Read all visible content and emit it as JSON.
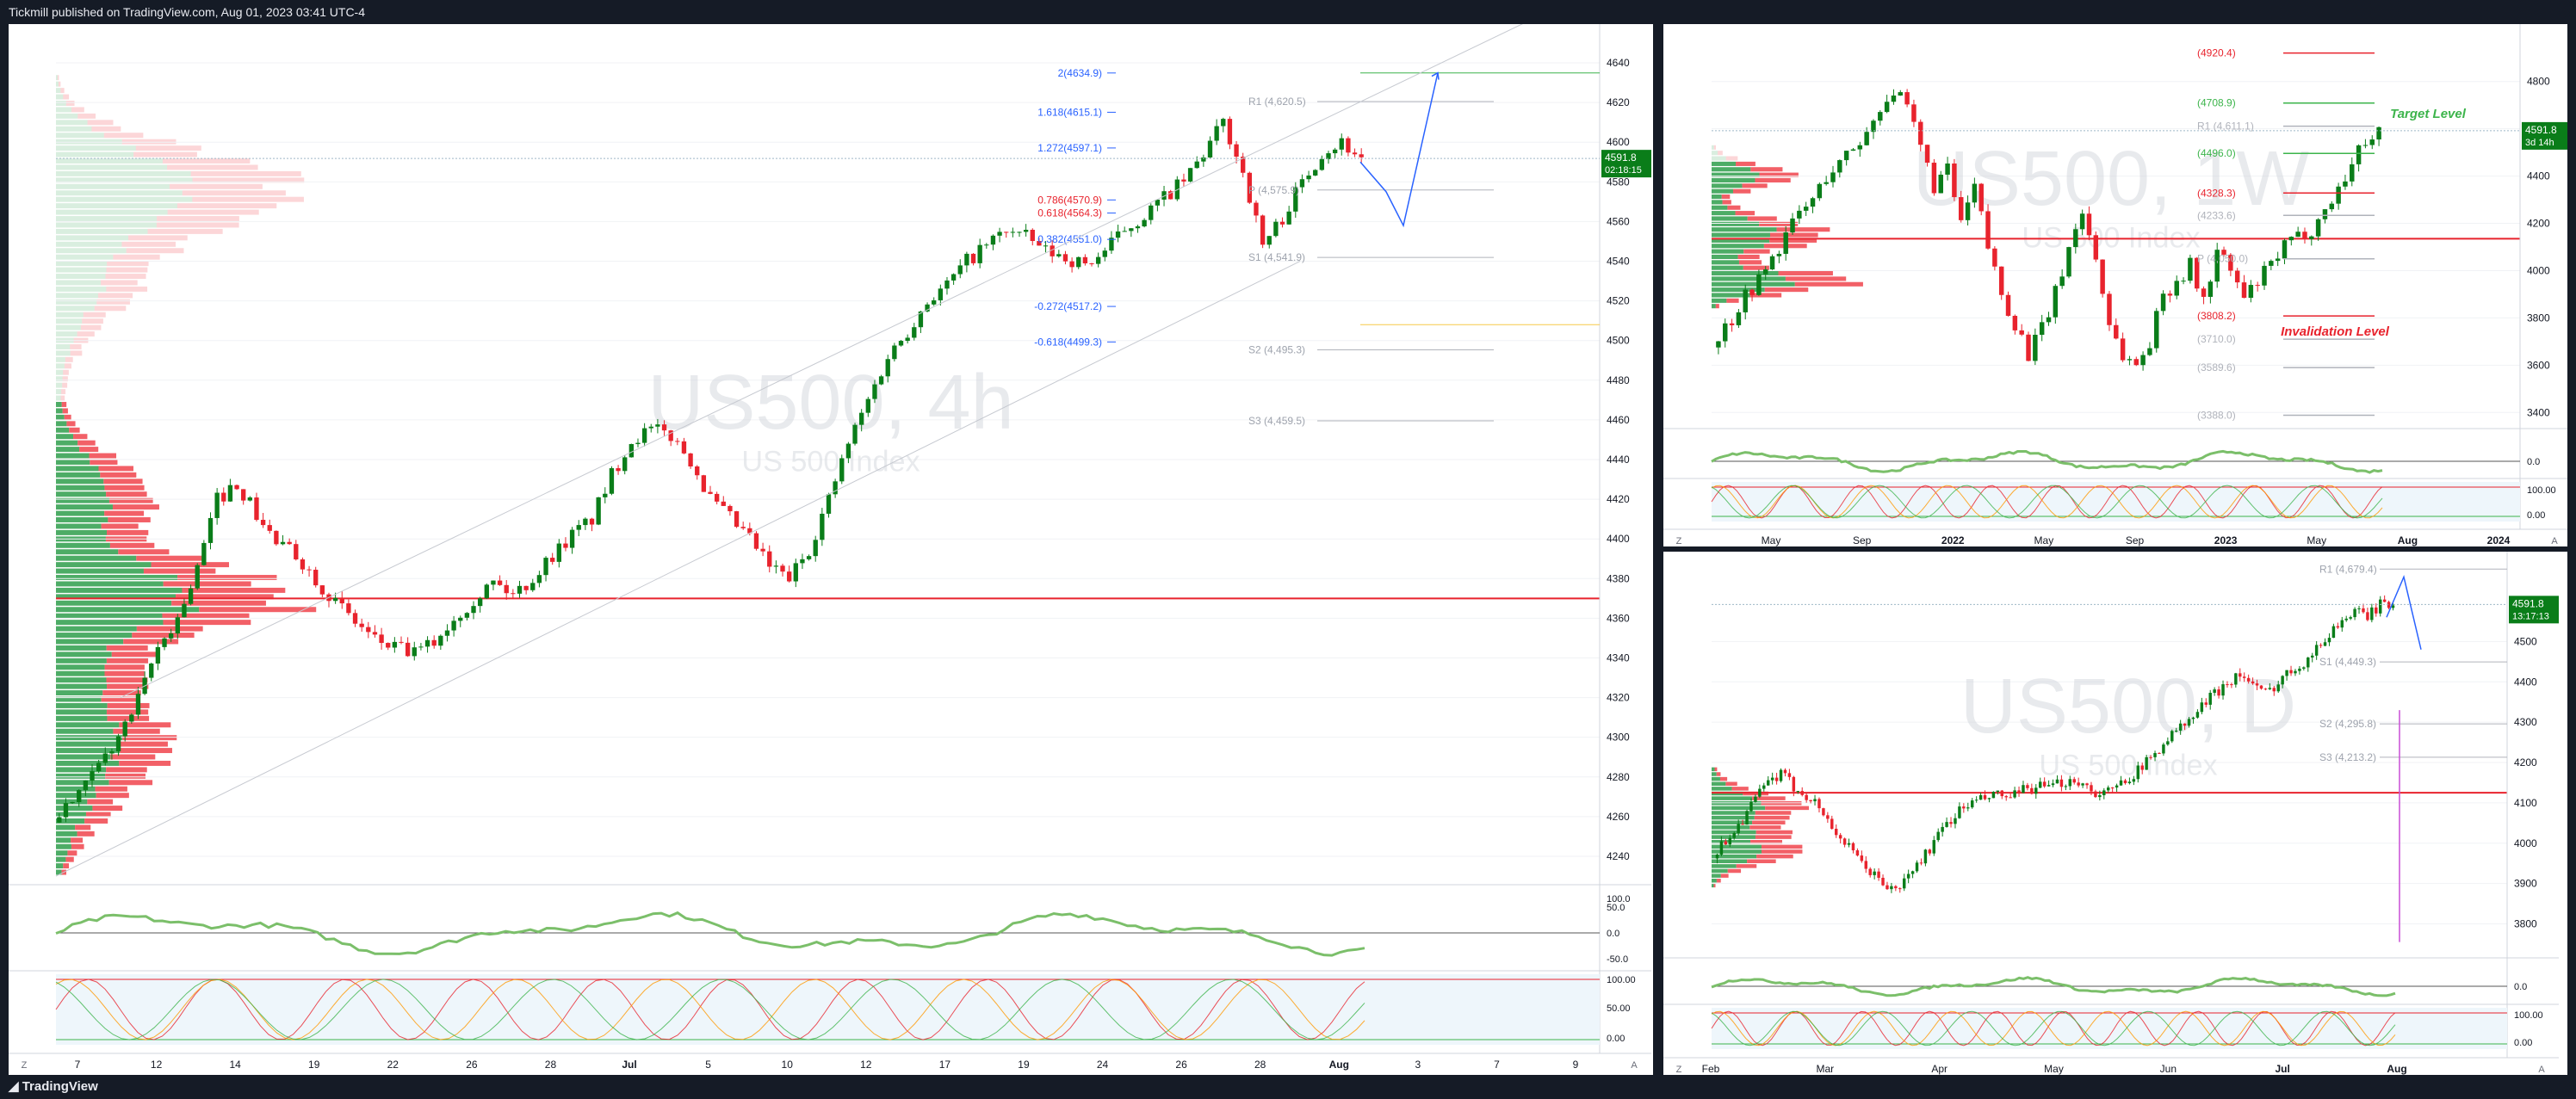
{
  "header": {
    "publisher": "Tickmill published on TradingView.com, Aug 01, 2023 03:41 UTC-4"
  },
  "footer": {
    "brand": "TradingView"
  },
  "colors": {
    "bull": "#089981",
    "candle_up": "#0a7d19",
    "candle_down": "#e8232d",
    "support": "#e8232d",
    "profile_green": "#2e9e4b",
    "profile_red": "#f0444c",
    "fib": "#2962ff",
    "target": "#3cb44b"
  },
  "chart_data": [
    {
      "type": "candlestick",
      "symbol_watermark": "US500, 4h",
      "symbol_subtitle": "US 500 Index",
      "interval": "4h",
      "y_axis": {
        "min": 4230,
        "max": 4650,
        "ticks": [
          4640,
          4620,
          4600,
          4580,
          4560,
          4540,
          4520,
          4500,
          4480,
          4460,
          4440,
          4420,
          4400,
          4380,
          4360,
          4340,
          4320,
          4300,
          4280,
          4260,
          4240
        ]
      },
      "x_axis": {
        "ticks": [
          "7",
          "12",
          "14",
          "19",
          "22",
          "26",
          "28",
          "Jul",
          "5",
          "10",
          "12",
          "17",
          "19",
          "24",
          "26",
          "28",
          "Aug",
          "3",
          "7",
          "9"
        ]
      },
      "last_price": {
        "value": "4591.8",
        "countdown": "02:18:15"
      },
      "close_path": [
        4262,
        4270,
        4285,
        4300,
        4318,
        4345,
        4360,
        4385,
        4420,
        4428,
        4412,
        4398,
        4392,
        4380,
        4368,
        4358,
        4349,
        4345,
        4342,
        4348,
        4360,
        4370,
        4378,
        4372,
        4380,
        4392,
        4402,
        4410,
        4432,
        4450,
        4455,
        4452,
        4440,
        4420,
        4410,
        4400,
        4386,
        4380,
        4395,
        4420,
        4448,
        4470,
        4492,
        4505,
        4520,
        4528,
        4540,
        4548,
        4556,
        4552,
        4545,
        4542,
        4538,
        4545,
        4556,
        4563,
        4572,
        4580,
        4594,
        4610,
        4585,
        4548,
        4562,
        4580,
        4595,
        4600,
        4592
      ],
      "fib_levels": [
        {
          "label": "2(4634.9)",
          "value": 4634.9
        },
        {
          "label": "1.618(4615.1)",
          "value": 4615.1
        },
        {
          "label": "1.272(4597.1)",
          "value": 4597.1
        },
        {
          "label": "0.786(4570.9)",
          "value": 4570.9
        },
        {
          "label": "0.618(4564.3)",
          "value": 4564.3
        },
        {
          "label": "0.382(4551.0)",
          "value": 4551.0
        },
        {
          "label": "-0.272(4517.2)",
          "value": 4517.2
        },
        {
          "label": "-0.618(4499.3)",
          "value": 4499.3
        }
      ],
      "pivots": [
        {
          "label": "R1 (4,620.5)",
          "value": 4620.5
        },
        {
          "label": "P (4,575.9)",
          "value": 4575.9
        },
        {
          "label": "S1 (4,541.9)",
          "value": 4541.9
        },
        {
          "label": "S2 (4,495.3)",
          "value": 4495.3
        },
        {
          "label": "S3 (4,459.5)",
          "value": 4459.5
        }
      ],
      "support_level": 4370,
      "rsi": {
        "ticks": [
          "100.0",
          "50.0",
          "0.0",
          "-50.0"
        ]
      },
      "stoch": {
        "ticks": [
          "100.00",
          "50.00",
          "0.00"
        ]
      }
    },
    {
      "type": "candlestick",
      "symbol_watermark": "US500, 1W",
      "symbol_subtitle": "US 500 Index",
      "interval": "1W",
      "y_axis": {
        "min": 3350,
        "max": 4970,
        "ticks": [
          4800,
          4600,
          4400,
          4200,
          4000,
          3800,
          3600,
          3400
        ]
      },
      "x_axis": {
        "ticks": [
          "May",
          "Sep",
          "2022",
          "May",
          "Sep",
          "2023",
          "May",
          "Aug",
          "2024"
        ]
      },
      "last_price": {
        "value": "4591.8",
        "countdown": "3d 14h"
      },
      "close_path": [
        3720,
        3800,
        3900,
        3960,
        4050,
        4150,
        4240,
        4300,
        4400,
        4450,
        4520,
        4580,
        4700,
        4760,
        4680,
        4520,
        4360,
        4420,
        4200,
        4350,
        4100,
        3900,
        3780,
        3650,
        3750,
        3900,
        4100,
        4250,
        4050,
        3780,
        3640,
        3600,
        3700,
        3900,
        3960,
        4020,
        3870,
        4080,
        4000,
        3880,
        3950,
        4020,
        4100,
        4140,
        4180,
        4250,
        4350,
        4450,
        4560,
        4592
      ],
      "levels": [
        {
          "label": "(4920.4)",
          "value": 4920.4,
          "color": "#e8232d"
        },
        {
          "label": "(4708.9)",
          "value": 4708.9,
          "color": "#3cb44b"
        },
        {
          "label": "R1 (4,611.1)",
          "value": 4611.1,
          "color": "#b0b3bb"
        },
        {
          "label": "(4496.0)",
          "value": 4496.0,
          "color": "#3cb44b"
        },
        {
          "label": "(4328.3)",
          "value": 4328.3,
          "color": "#e8232d"
        },
        {
          "label": "(4233.6)",
          "value": 4233.6,
          "color": "#b0b3bb"
        },
        {
          "label": "P (4,050.0)",
          "value": 4050.0,
          "color": "#b0b3bb"
        },
        {
          "label": "(3808.2)",
          "value": 3808.2,
          "color": "#e8232d"
        },
        {
          "label": "(3710.0)",
          "value": 3710.0,
          "color": "#b0b3bb"
        },
        {
          "label": "(3589.6)",
          "value": 3589.6,
          "color": "#b0b3bb"
        },
        {
          "label": "(3388.0)",
          "value": 3388.0,
          "color": "#b0b3bb"
        }
      ],
      "support_level": 4135,
      "annotations": {
        "target": "Target Level",
        "invalidation": "Invalidation Level"
      },
      "rsi": {
        "ticks": [
          "0.0"
        ]
      },
      "stoch": {
        "ticks": [
          "100.00",
          "0.00"
        ]
      }
    },
    {
      "type": "candlestick",
      "symbol_watermark": "US500, D",
      "symbol_subtitle": "US 500 Index",
      "interval": "D",
      "y_axis": {
        "min": 3720,
        "max": 4680,
        "ticks": [
          4500,
          4400,
          4300,
          4200,
          4100,
          4000,
          3900,
          3800
        ]
      },
      "x_axis": {
        "ticks": [
          "Feb",
          "Mar",
          "Apr",
          "May",
          "Jun",
          "Jul",
          "Aug"
        ]
      },
      "last_price": {
        "value": "4591.8",
        "countdown": "13:17:13"
      },
      "close_path": [
        3980,
        4020,
        4060,
        4110,
        4150,
        4170,
        4140,
        4120,
        4090,
        4040,
        4000,
        3960,
        3930,
        3900,
        3880,
        3920,
        3960,
        4000,
        4050,
        4080,
        4100,
        4110,
        4120,
        4110,
        4130,
        4140,
        4135,
        4150,
        4160,
        4140,
        4120,
        4130,
        4160,
        4180,
        4210,
        4250,
        4280,
        4300,
        4340,
        4370,
        4400,
        4420,
        4390,
        4370,
        4400,
        4430,
        4450,
        4480,
        4520,
        4555,
        4570,
        4565,
        4590,
        4592
      ],
      "pivots": [
        {
          "label": "R1 (4,679.4)",
          "value": 4679.4
        },
        {
          "label": "S1 (4,449.3)",
          "value": 4449.3
        },
        {
          "label": "S2 (4,295.8)",
          "value": 4295.8
        },
        {
          "label": "S3 (4,213.2)",
          "value": 4213.2
        }
      ],
      "support_level": 4125,
      "rsi": {
        "ticks": [
          "0.0"
        ]
      },
      "stoch": {
        "ticks": [
          "100.00",
          "0.00"
        ]
      }
    }
  ]
}
